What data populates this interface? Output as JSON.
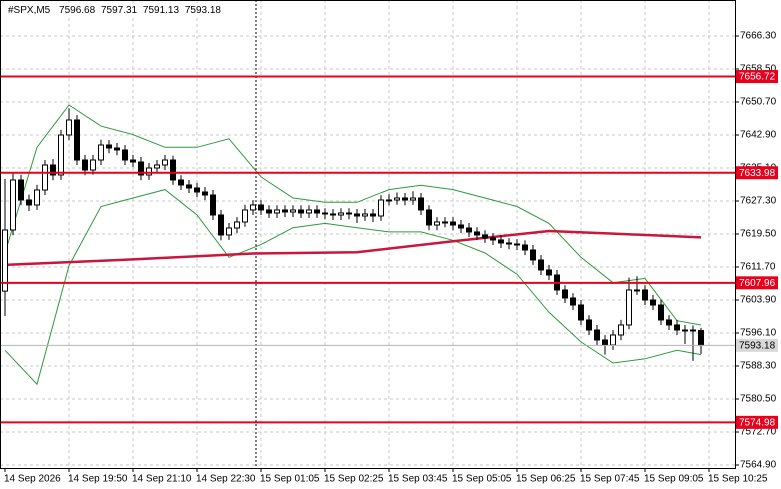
{
  "chart_data": {
    "type": "candlestick",
    "title": "#SPX,M5",
    "ylim": [
      7564.19,
      7674.81
    ],
    "yticks": [
      {
        "value": 7666.3,
        "label": "7666.30"
      },
      {
        "value": 7658.5,
        "label": "7658.50"
      },
      {
        "value": 7650.7,
        "label": "7650.70"
      },
      {
        "value": 7642.9,
        "label": "7642.90"
      },
      {
        "value": 7635.1,
        "label": "7635.10"
      },
      {
        "value": 7627.3,
        "label": "7627.30"
      },
      {
        "value": 7619.5,
        "label": "7619.50"
      },
      {
        "value": 7611.7,
        "label": "7611.70"
      },
      {
        "value": 7603.9,
        "label": "7603.90"
      },
      {
        "value": 7596.1,
        "label": "7596.10"
      },
      {
        "value": 7588.3,
        "label": "7588.30"
      },
      {
        "value": 7580.5,
        "label": "7580.50"
      },
      {
        "value": 7572.7,
        "label": "7572.70"
      },
      {
        "value": 7564.9,
        "label": "7564.90"
      }
    ],
    "xlim": [
      -0.625,
      91.25
    ],
    "xticks": [
      {
        "value": 0,
        "label": "14 Sep 2026"
      },
      {
        "value": 8,
        "label": "14 Sep 19:50"
      },
      {
        "value": 16,
        "label": "14 Sep 21:10"
      },
      {
        "value": 24,
        "label": "14 Sep 22:30"
      },
      {
        "value": 32,
        "label": "15 Sep 01:05"
      },
      {
        "value": 40,
        "label": "15 Sep 02:25"
      },
      {
        "value": 48,
        "label": "15 Sep 03:45"
      },
      {
        "value": 56,
        "label": "15 Sep 05:05"
      },
      {
        "value": 64,
        "label": "15 Sep 06:25"
      },
      {
        "value": 72,
        "label": "15 Sep 07:45"
      },
      {
        "value": 80,
        "label": "15 Sep 09:05"
      },
      {
        "value": 88,
        "label": "15 Sep 10:25"
      }
    ],
    "grid": true,
    "open": [
      7606.0,
      7620.45,
      7632.27,
      7627.54,
      7626.36,
      7629.9,
      7635.81,
      7633.45,
      7642.9,
      7646.45,
      7636.99,
      7634.63,
      7636.99,
      7640.54,
      7639.83,
      7639.36,
      7636.99,
      7636.52,
      7633.45,
      7635.1,
      7635.81,
      7636.99,
      7632.27,
      7631.09,
      7630.38,
      7629.43,
      7628.72,
      7623.99,
      7619.27,
      7620.92,
      7622.34,
      7625.18,
      7626.36,
      7625.18,
      7624.47,
      7625.18,
      7624.7,
      7625.18,
      7624.47,
      7625.18,
      7624.47,
      7624.23,
      7623.99,
      7624.47,
      7624.23,
      7623.76,
      7624.23,
      7623.76,
      7627.54,
      7627.54,
      7628.01,
      7627.54,
      7628.01,
      7625.18,
      7621.63,
      7622.34,
      7622.34,
      7621.63,
      7620.92,
      7619.98,
      7619.27,
      7618.56,
      7618.09,
      7617.38,
      7617.14,
      7616.9,
      7615.72,
      7613.36,
      7611.0,
      7609.81,
      7606.27,
      7604.38,
      7602.72,
      7599.18,
      7596.81,
      7594.45,
      7593.27,
      7595.63,
      7598.0,
      7606.27,
      7606.27,
      7603.9,
      7602.72,
      7599.18,
      7598.0,
      7596.81,
      7596.81,
      7596.68
    ],
    "high": [
      7632.5,
      7634.1,
      7633.5,
      7628.8,
      7631.1,
      7637.0,
      7637.2,
      7644.1,
      7649.2,
      7647.6,
      7638.2,
      7638.2,
      7641.8,
      7641.7,
      7641.0,
      7640.5,
      7638.2,
      7637.7,
      7636.3,
      7637.0,
      7638.2,
      7638.0,
      7633.4,
      7632.3,
      7631.6,
      7630.6,
      7629.9,
      7625.2,
      7622.1,
      7623.5,
      7626.4,
      7627.5,
      7627.5,
      7626.3,
      7626.3,
      7626.3,
      7626.3,
      7626.3,
      7626.3,
      7626.3,
      7625.6,
      7625.4,
      7625.6,
      7625.6,
      7625.4,
      7625.4,
      7625.4,
      7628.7,
      7628.9,
      7629.3,
      7629.2,
      7629.6,
      7629.2,
      7626.3,
      7623.5,
      7623.5,
      7623.5,
      7622.8,
      7622.1,
      7621.1,
      7620.4,
      7619.7,
      7619.2,
      7618.5,
      7618.3,
      7618.0,
      7616.9,
      7614.5,
      7612.2,
      7611.0,
      7607.4,
      7605.5,
      7603.9,
      7600.3,
      7598.0,
      7595.6,
      7596.8,
      7599.2,
      7609.2,
      7609.5,
      7607.4,
      7605.1,
      7603.9,
      7600.3,
      7599.2,
      7598.0,
      7597.9,
      7597.31
    ],
    "low": [
      7600.1,
      7619.2,
      7626.3,
      7624.9,
      7625.2,
      7628.7,
      7632.2,
      7632.3,
      7641.7,
      7635.8,
      7633.4,
      7633.5,
      7635.8,
      7638.6,
      7638.1,
      7635.8,
      7635.3,
      7632.2,
      7632.3,
      7634.0,
      7634.6,
      7631.1,
      7629.9,
      7629.2,
      7628.2,
      7627.5,
      7622.8,
      7618.0,
      7618.1,
      7619.7,
      7621.2,
      7624.0,
      7624.0,
      7623.3,
      7623.3,
      7623.5,
      7623.5,
      7623.3,
      7623.3,
      7623.3,
      7623.0,
      7622.8,
      7622.8,
      7623.0,
      7622.1,
      7622.6,
      7622.3,
      7622.6,
      7626.3,
      7626.4,
      7626.3,
      7626.4,
      7624.0,
      7620.4,
      7620.4,
      7621.1,
      7620.4,
      7619.7,
      7618.8,
      7618.1,
      7617.4,
      7616.9,
      7616.2,
      7615.9,
      7615.7,
      7614.5,
      7612.2,
      7609.8,
      7608.6,
      7605.1,
      7603.2,
      7601.5,
      7598.0,
      7595.6,
      7593.2,
      7591.0,
      7592.1,
      7594.4,
      7597.0,
      7605.1,
      7602.7,
      7601.5,
      7598.0,
      7596.8,
      7595.6,
      7593.5,
      7589.5,
      7591.13
    ],
    "close": [
      7620.45,
      7632.27,
      7627.54,
      7626.36,
      7629.9,
      7635.81,
      7633.45,
      7642.9,
      7646.45,
      7636.99,
      7634.63,
      7636.99,
      7640.54,
      7639.83,
      7639.36,
      7636.99,
      7636.52,
      7633.45,
      7635.1,
      7635.81,
      7636.99,
      7632.27,
      7631.09,
      7630.38,
      7629.43,
      7628.72,
      7623.99,
      7619.27,
      7620.92,
      7622.34,
      7625.18,
      7626.36,
      7625.18,
      7624.47,
      7625.18,
      7624.7,
      7625.18,
      7624.47,
      7625.18,
      7624.47,
      7624.23,
      7623.99,
      7624.47,
      7624.23,
      7623.76,
      7624.23,
      7623.76,
      7627.54,
      7627.54,
      7628.01,
      7627.54,
      7628.01,
      7625.18,
      7621.63,
      7622.34,
      7622.34,
      7621.63,
      7620.92,
      7619.98,
      7619.27,
      7618.56,
      7618.09,
      7617.38,
      7617.14,
      7616.9,
      7615.72,
      7613.36,
      7611.0,
      7609.81,
      7606.27,
      7604.38,
      7602.72,
      7599.18,
      7596.81,
      7594.45,
      7593.27,
      7595.63,
      7598.0,
      7606.27,
      7606.27,
      7603.9,
      7602.72,
      7599.18,
      7598.0,
      7596.81,
      7596.81,
      7596.68,
      7593.18
    ],
    "lines": [
      {
        "color": "#2e9a3c",
        "x": [
          0,
          4,
          8,
          12,
          16,
          20,
          24,
          28,
          32,
          36,
          40,
          44,
          48,
          52,
          56,
          60,
          64,
          68,
          72,
          76,
          80,
          84,
          87
        ],
        "values": [
          7615,
          7640,
          7650,
          7645,
          7643,
          7640,
          7640,
          7642,
          7633,
          7628,
          7627,
          7627,
          7630,
          7631,
          7630,
          7628,
          7626,
          7622,
          7614,
          7608,
          7609,
          7599,
          7598
        ]
      },
      {
        "color": "#2e9a3c",
        "x": [
          0,
          4,
          8,
          12,
          16,
          20,
          24,
          28,
          32,
          36,
          40,
          44,
          48,
          52,
          56,
          60,
          64,
          68,
          72,
          76,
          80,
          84,
          87
        ],
        "values": [
          7592,
          7584,
          7612,
          7626,
          7628,
          7630,
          7624,
          7614,
          7617,
          7621,
          7622,
          7621,
          7620,
          7620,
          7618,
          7615,
          7610,
          7601,
          7594,
          7589,
          7590,
          7592,
          7591
        ]
      },
      {
        "color": "#c8163c",
        "x": [
          0,
          16,
          31,
          44,
          56,
          68,
          76,
          87
        ],
        "values": [
          7612.2,
          7613.5,
          7614.9,
          7615.2,
          7617.8,
          7620.2,
          7619.6,
          7618.7
        ]
      }
    ],
    "levels": {
      "color": "#e8001c",
      "values": [
        7656.72,
        7633.98,
        7607.96,
        7574.98
      ]
    }
  }
}
